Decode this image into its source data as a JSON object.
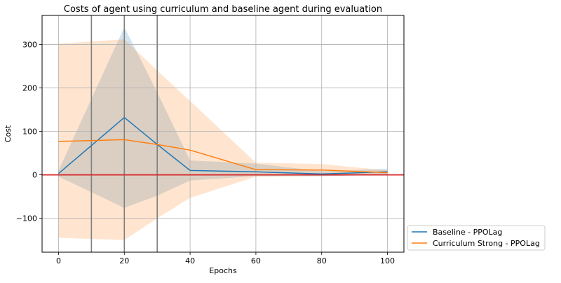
{
  "chart_data": {
    "type": "line",
    "title": "Costs of agent using curriculum and baseline agent during evaluation",
    "xlabel": "Epochs",
    "ylabel": "Cost",
    "xlim": [
      -5,
      105
    ],
    "ylim": [
      -178,
      367
    ],
    "xticks": [
      0,
      20,
      40,
      60,
      80,
      100
    ],
    "xtick_labels": [
      "0",
      "20",
      "40",
      "60",
      "80",
      "100"
    ],
    "yticks": [
      -100,
      0,
      100,
      200,
      300
    ],
    "ytick_labels": [
      "−100",
      "0",
      "100",
      "200",
      "300"
    ],
    "grid": true,
    "legend_placement": "outside lower right",
    "x": [
      0,
      20,
      30,
      40,
      60,
      80,
      100
    ],
    "series": [
      {
        "name": "Baseline - PPOLag",
        "color": "#1f77b4",
        "values": [
          3,
          132,
          70,
          10,
          7,
          2,
          7
        ],
        "band_upper": [
          10,
          340,
          190,
          33,
          26,
          8,
          14
        ],
        "band_lower": [
          -4,
          -76,
          -48,
          -13,
          -3,
          -3,
          0
        ]
      },
      {
        "name": "Curriculum Strong - PPOLag",
        "color": "#ff7f0e",
        "values": [
          77,
          81,
          70,
          57,
          12,
          11,
          5
        ],
        "band_upper": [
          302,
          312,
          240,
          170,
          28,
          25,
          10
        ],
        "band_lower": [
          -145,
          -150,
          -100,
          -53,
          -4,
          -3,
          0
        ]
      }
    ],
    "vertical_lines_x": [
      10,
      20,
      30
    ],
    "vertical_line_color": "#7f7f7f",
    "horizontal_line_y": 0,
    "horizontal_line_color": "#d62728"
  }
}
